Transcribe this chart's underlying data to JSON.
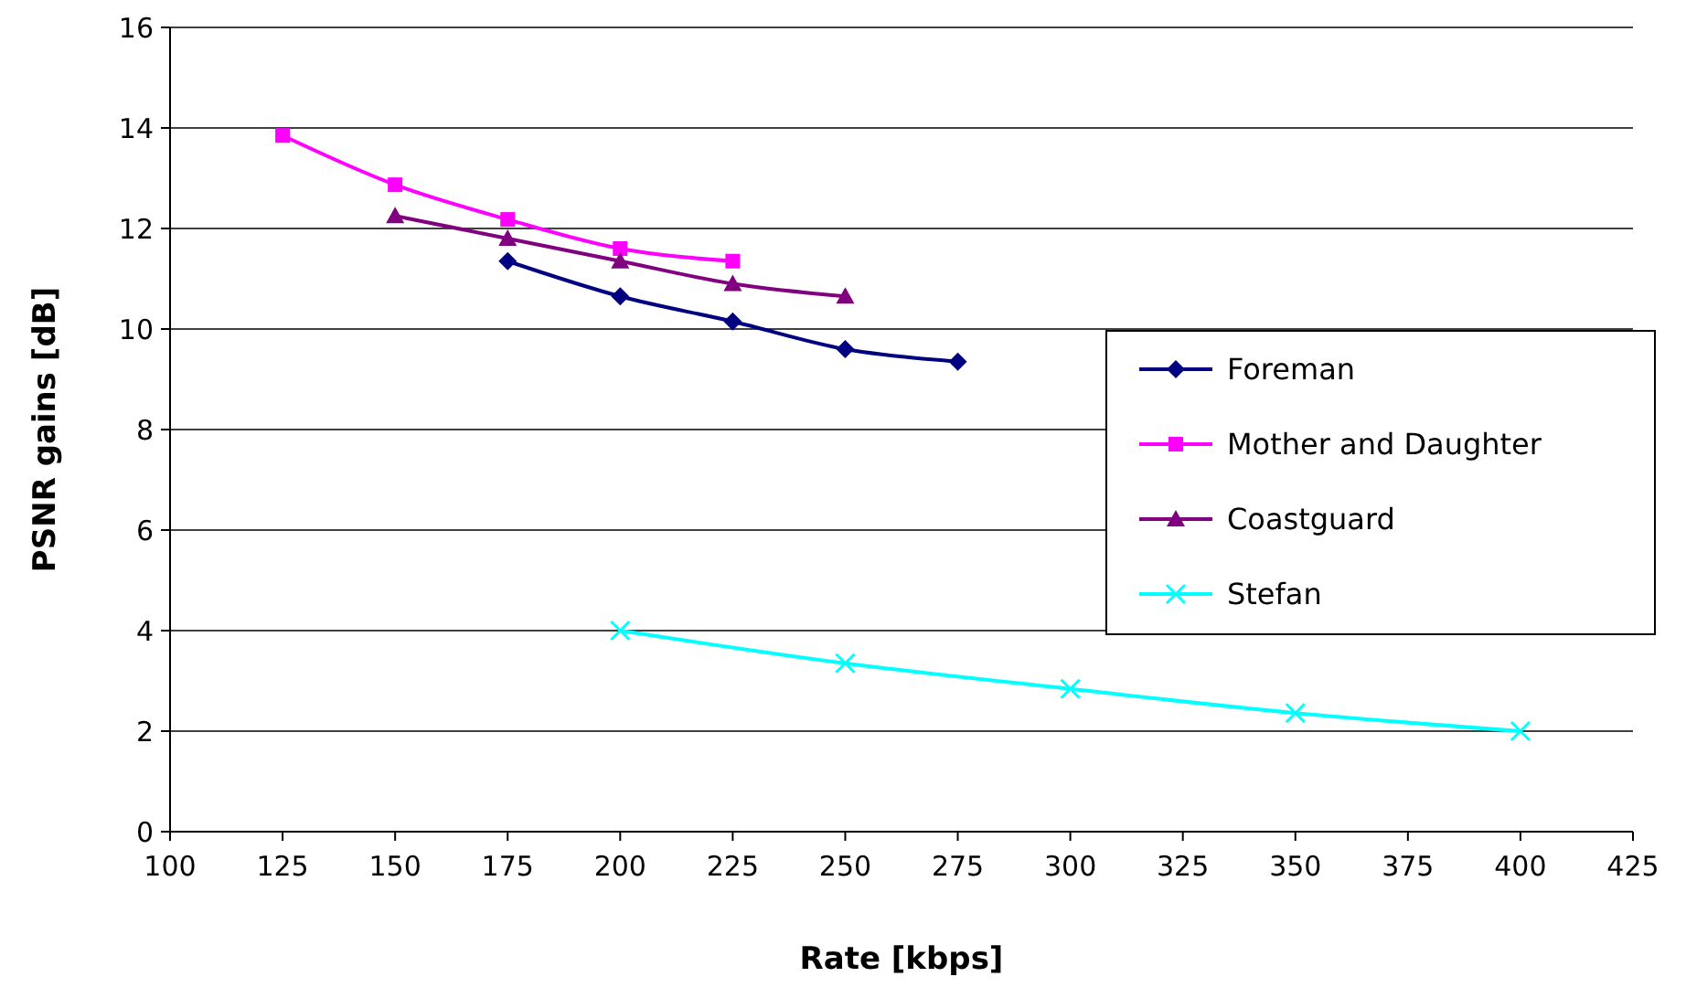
{
  "chart_data": {
    "type": "line",
    "xlabel": "Rate [kbps]",
    "ylabel": "PSNR gains [dB]",
    "xlim": [
      100,
      425
    ],
    "xticks": [
      100,
      125,
      150,
      175,
      200,
      225,
      250,
      275,
      300,
      325,
      350,
      375,
      400,
      425
    ],
    "ylim": [
      0,
      16
    ],
    "yticks": [
      0,
      2,
      4,
      6,
      8,
      10,
      12,
      14,
      16
    ],
    "grid": "y",
    "legend": "right",
    "series": [
      {
        "name": "Foreman",
        "color": "#000080",
        "marker": "diamond",
        "x": [
          175,
          200,
          225,
          250,
          275
        ],
        "values": [
          11.35,
          10.65,
          10.15,
          9.6,
          9.35
        ]
      },
      {
        "name": "Mother and Daughter",
        "color": "#ff00ff",
        "marker": "square",
        "x": [
          125,
          150,
          175,
          200,
          225
        ],
        "values": [
          13.85,
          12.87,
          12.18,
          11.6,
          11.35
        ]
      },
      {
        "name": "Coastguard",
        "color": "#800080",
        "marker": "triangle",
        "x": [
          150,
          175,
          200,
          225,
          250
        ],
        "values": [
          12.25,
          11.8,
          11.35,
          10.9,
          10.65
        ]
      },
      {
        "name": "Stefan",
        "color": "#00ffff",
        "marker": "cross",
        "x": [
          200,
          250,
          300,
          350,
          400
        ],
        "values": [
          4.0,
          3.35,
          2.84,
          2.36,
          2.0
        ]
      }
    ]
  }
}
